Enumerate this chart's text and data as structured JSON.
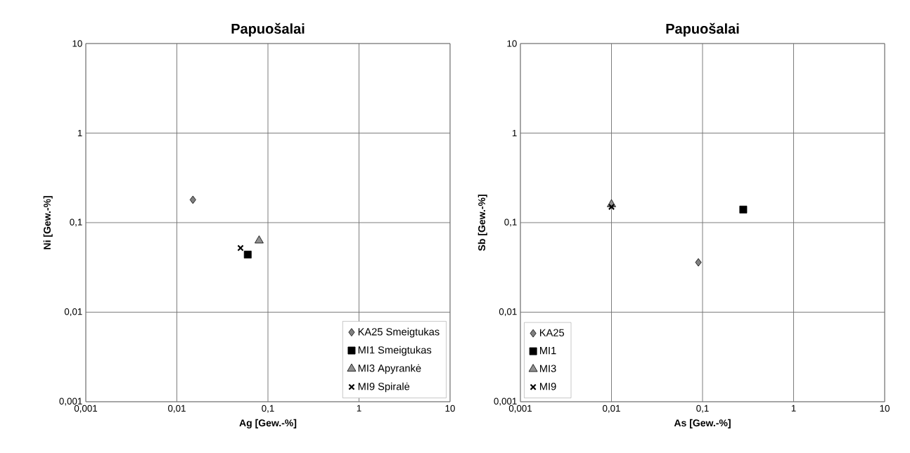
{
  "chart_data": [
    {
      "type": "scatter",
      "title": "Papuošalai",
      "xlabel": "Ag [Gew.-%]",
      "ylabel": "Ni [Gew.-%]",
      "log": "xy",
      "grid": true,
      "legend": "bottom right",
      "xlim": [
        0.001,
        10
      ],
      "ylim": [
        0.001,
        10
      ],
      "xticks": [
        {
          "value": 0.001,
          "label": "0,001"
        },
        {
          "value": 0.01,
          "label": "0,01"
        },
        {
          "value": 0.1,
          "label": "0,1"
        },
        1,
        10
      ],
      "yticks": [
        {
          "value": 0.001,
          "label": "0,001"
        },
        {
          "value": 0.01,
          "label": "0,01"
        },
        {
          "value": 0.1,
          "label": "0,1"
        },
        1,
        10
      ],
      "series": [
        {
          "name": "KA25 Smeigtukas",
          "color": "#808080",
          "marker": "diamond",
          "x": [
            0.015
          ],
          "values": [
            0.18
          ]
        },
        {
          "name": "MI1 Smeigtukas",
          "color": "#000000",
          "marker": "square",
          "x": [
            0.06
          ],
          "values": [
            0.044
          ]
        },
        {
          "name": "MI3 Apyrankė",
          "color": "#909090",
          "marker": "triangle",
          "x": [
            0.08
          ],
          "values": [
            0.063
          ]
        },
        {
          "name": "MI9 Spiralė",
          "color": "#000000",
          "marker": "cross",
          "x": [
            0.05
          ],
          "values": [
            0.052
          ]
        }
      ]
    },
    {
      "type": "scatter",
      "title": "Papuošalai",
      "xlabel": "As [Gew.-%]",
      "ylabel": "Sb [Gew.-%]",
      "log": "xy",
      "grid": true,
      "legend": "bottom left",
      "xlim": [
        0.001,
        10
      ],
      "ylim": [
        0.001,
        10
      ],
      "xticks": [
        {
          "value": 0.001,
          "label": "0,001"
        },
        {
          "value": 0.01,
          "label": "0,01"
        },
        {
          "value": 0.1,
          "label": "0,1"
        },
        1,
        10
      ],
      "yticks": [
        {
          "value": 0.001,
          "label": "0,001"
        },
        {
          "value": 0.01,
          "label": "0,01"
        },
        {
          "value": 0.1,
          "label": "0,1"
        },
        1,
        10
      ],
      "series": [
        {
          "name": "KA25",
          "color": "#808080",
          "marker": "diamond",
          "x": [
            0.09
          ],
          "values": [
            0.036
          ]
        },
        {
          "name": "MI1",
          "color": "#000000",
          "marker": "square",
          "x": [
            0.28
          ],
          "values": [
            0.14
          ]
        },
        {
          "name": "MI3",
          "color": "#909090",
          "marker": "triangle",
          "x": [
            0.01
          ],
          "values": [
            0.16
          ]
        },
        {
          "name": "MI9",
          "color": "#000000",
          "marker": "cross",
          "x": [
            0.01
          ],
          "values": [
            0.15
          ]
        }
      ]
    }
  ]
}
